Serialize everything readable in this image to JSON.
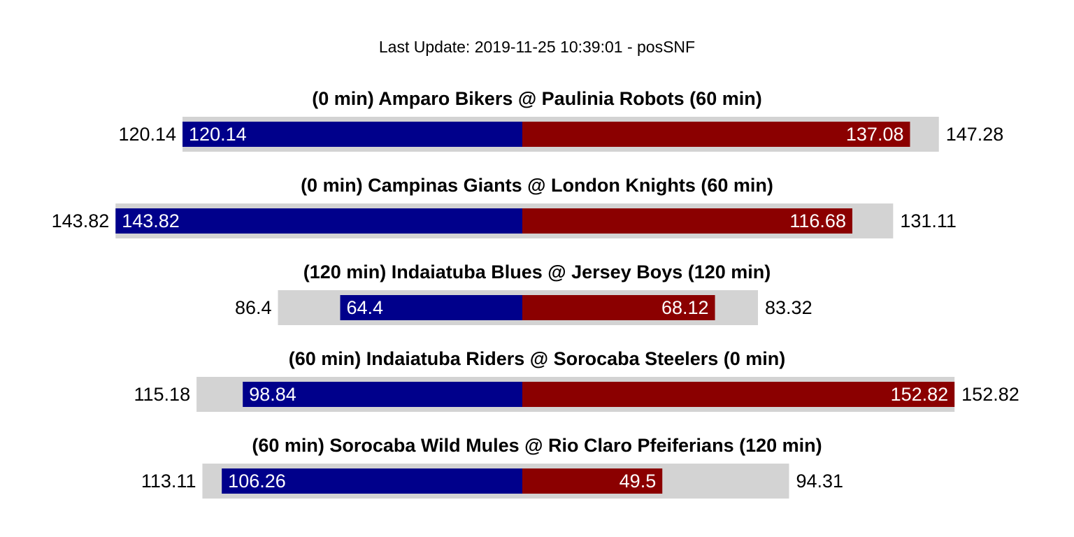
{
  "chart_data": {
    "type": "bar",
    "orientation": "horizontal-diverging",
    "subtitle": "Last Update: 2019-11-25 10:39:01 - posSNF",
    "colors": {
      "away": "#00008b",
      "home": "#8b0000",
      "projection": "#d3d3d3"
    },
    "matchups": [
      {
        "title": "(0 min) Amparo Bikers @ Paulinia Robots (60 min)",
        "away_score": 120.14,
        "home_score": 137.08,
        "away_proj": 120.14,
        "home_proj": 147.28
      },
      {
        "title": "(0 min) Campinas Giants @ London Knights (60 min)",
        "away_score": 143.82,
        "home_score": 116.68,
        "away_proj": 143.82,
        "home_proj": 131.11
      },
      {
        "title": "(120 min) Indaiatuba Blues @ Jersey Boys (120 min)",
        "away_score": 64.4,
        "home_score": 68.12,
        "away_proj": 86.4,
        "home_proj": 83.32
      },
      {
        "title": "(60 min) Indaiatuba Riders @ Sorocaba Steelers (0 min)",
        "away_score": 98.84,
        "home_score": 152.82,
        "away_proj": 115.18,
        "home_proj": 152.82
      },
      {
        "title": "(60 min) Sorocaba Wild Mules @ Rio Claro Pfeiferians (120 min)",
        "away_score": 106.26,
        "home_score": 49.5,
        "away_proj": 113.11,
        "home_proj": 94.31
      }
    ]
  }
}
